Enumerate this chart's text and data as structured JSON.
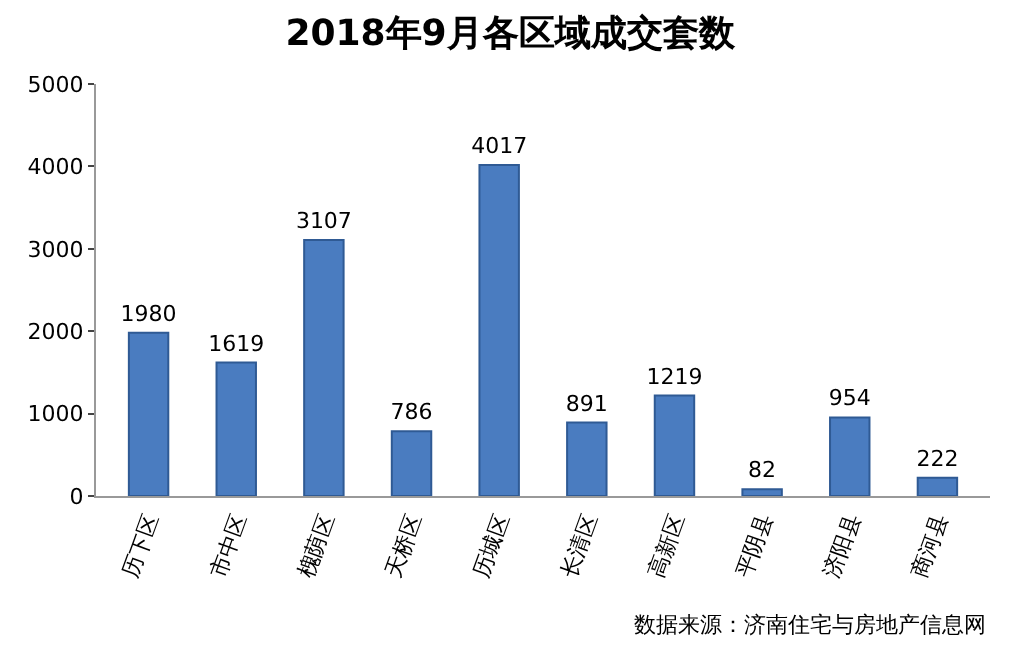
{
  "chart_data": {
    "type": "bar",
    "title": "2018年9月各区域成交套数",
    "categories": [
      "历下区",
      "市中区",
      "槐荫区",
      "天桥区",
      "历城区",
      "长清区",
      "高新区",
      "平阴县",
      "济阳县",
      "商河县"
    ],
    "values": [
      1980,
      1619,
      3107,
      786,
      4017,
      891,
      1219,
      82,
      954,
      222
    ],
    "color": "#4a7cc0",
    "data_labels": true,
    "grid": false,
    "ylim": [
      0,
      5000
    ],
    "yticks": [
      0,
      1000,
      2000,
      3000,
      4000,
      5000
    ],
    "annotations": [
      "数据来源：济南住宅与房地产信息网"
    ]
  }
}
